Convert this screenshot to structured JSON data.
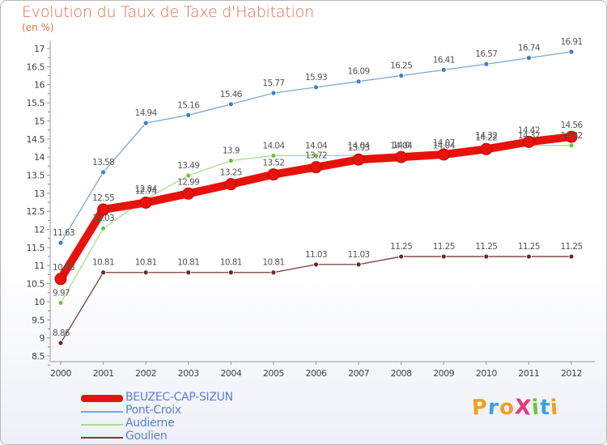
{
  "title": "Evolution du Taux de Taxe d'Habitation",
  "subtitle": "(en %)",
  "logo_text": "ProXiti",
  "chart_data": {
    "type": "line",
    "title": "Evolution du Taux de Taxe d'Habitation",
    "ylabel": "(en %)",
    "x": [
      "2000",
      "2001",
      "2002",
      "2003",
      "2004",
      "2005",
      "2006",
      "2007",
      "2008",
      "2009",
      "2010",
      "2011",
      "2012"
    ],
    "ylim": [
      8.5,
      17
    ],
    "yticks": [
      "8.5",
      "9",
      "9.5",
      "10",
      "10.5",
      "11",
      "11.5",
      "12",
      "12.5",
      "13",
      "13.5",
      "14",
      "14.5",
      "15",
      "15.5",
      "16",
      "16.5",
      "17"
    ],
    "grid": false,
    "legend_position": "bottom-left",
    "series": [
      {
        "name": "BEUZEC-CAP-SIZUN",
        "color": "#e8120c",
        "point_color": "#e8120c",
        "values": [
          10.63,
          12.55,
          12.74,
          12.99,
          13.25,
          13.52,
          13.72,
          13.93,
          14.0,
          14.07,
          14.22,
          14.42,
          14.56
        ],
        "labels": [
          "10.63",
          "12.55",
          "12.74",
          "12.99",
          "13.25",
          "13.52",
          "13.72",
          "13.93",
          "14.0",
          "14.07",
          "14.22",
          "14.42",
          "14.56"
        ]
      },
      {
        "name": "Pont-Croix",
        "color": "#7aa7d4",
        "point_color": "#3d7fc4",
        "values": [
          11.63,
          13.58,
          14.94,
          15.16,
          15.46,
          15.77,
          15.93,
          16.09,
          16.25,
          16.41,
          16.57,
          16.74,
          16.91
        ],
        "labels": [
          "11.63",
          "13.58",
          "14.94",
          "15.16",
          "15.46",
          "15.77",
          "15.93",
          "16.09",
          "16.25",
          "16.41",
          "16.57",
          "16.74",
          "16.91"
        ]
      },
      {
        "name": "Audierne",
        "color": "#a8dc8c",
        "point_color": "#6cc43c",
        "values": [
          9.97,
          12.03,
          12.84,
          13.49,
          13.9,
          14.04,
          14.04,
          14.04,
          14.04,
          14.04,
          14.32,
          14.32,
          14.32
        ],
        "labels": [
          "9.97",
          "12.03",
          "12.84",
          "13.49",
          "13.9",
          "14.04",
          "14.04",
          "14.04",
          "14.04",
          "14.04",
          "14.32",
          "14.32",
          "14.32"
        ]
      },
      {
        "name": "Goulien",
        "color": "#7b3a3a",
        "point_color": "#6b2a2a",
        "values": [
          8.86,
          10.81,
          10.81,
          10.81,
          10.81,
          10.81,
          11.03,
          11.03,
          11.25,
          11.25,
          11.25,
          11.25,
          11.25
        ],
        "labels": [
          "8.86",
          "10.81",
          "10.81",
          "10.81",
          "10.81",
          "10.81",
          "11.03",
          "11.03",
          "11.25",
          "11.25",
          "11.25",
          "11.25",
          "11.25"
        ]
      }
    ]
  }
}
